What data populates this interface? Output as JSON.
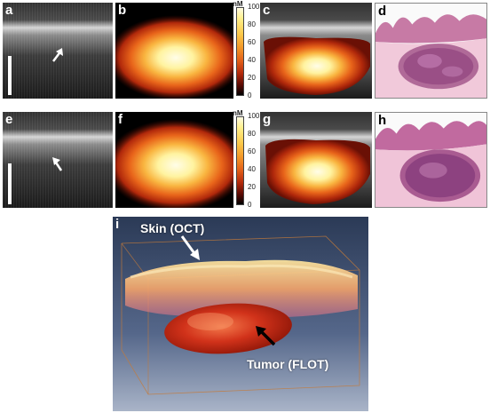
{
  "panels": {
    "a": {
      "label": "a"
    },
    "b": {
      "label": "b"
    },
    "c": {
      "label": "c"
    },
    "d": {
      "label": "d"
    },
    "e": {
      "label": "e"
    },
    "f": {
      "label": "f"
    },
    "g": {
      "label": "g"
    },
    "h": {
      "label": "h"
    },
    "i": {
      "label": "i"
    }
  },
  "colorbar": {
    "unit": "nM",
    "ticks": [
      "100",
      "80",
      "60",
      "40",
      "20",
      "0"
    ],
    "range": [
      0,
      100
    ],
    "colormap": "hot",
    "colors": {
      "high": "#fffbe2",
      "mid": "#f49a2a",
      "low": "#000000"
    }
  },
  "annotations": {
    "skin": "Skin (OCT)",
    "tumor": "Tumor (FLOT)"
  },
  "colors": {
    "oct_background": "#151515",
    "histology_pink": "#e9a9c4",
    "histology_purple": "#7b3f7d",
    "render_bg": "#2f3f5a",
    "tumor_red": "#cf2a12"
  },
  "icons": [
    "arrow-white",
    "arrow-black",
    "scale-bar"
  ]
}
